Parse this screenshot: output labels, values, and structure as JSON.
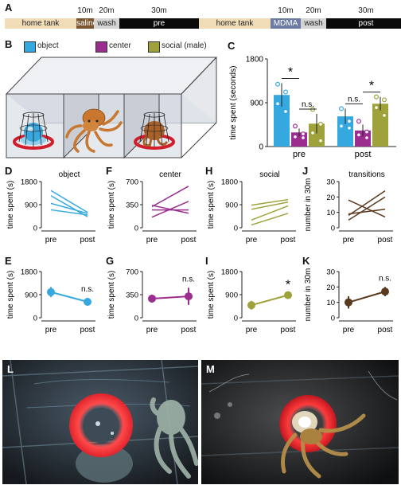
{
  "panels": {
    "A": "A",
    "B": "B",
    "C": "C",
    "D": "D",
    "E": "E",
    "F": "F",
    "G": "G",
    "H": "H",
    "I": "I",
    "J": "J",
    "K": "K",
    "L": "L",
    "M": "M"
  },
  "timeline": {
    "blocks": [
      {
        "label": "home tank",
        "color": "#f0dcb6",
        "text_color": "#222"
      },
      {
        "label": "saline",
        "color": "#7a5530",
        "text_color": "#ffffff"
      },
      {
        "label": "wash",
        "color": "#d4d4d4",
        "text_color": "#222"
      },
      {
        "label": "pre",
        "color": "#0a0a0a",
        "text_color": "#ffffff"
      },
      {
        "label": "home tank",
        "color": "#f0dcb6",
        "text_color": "#222"
      },
      {
        "label": "MDMA",
        "color": "#6c7ba4",
        "text_color": "#ffffff"
      },
      {
        "label": "wash",
        "color": "#d4d4d4",
        "text_color": "#222"
      },
      {
        "label": "post",
        "color": "#0a0a0a",
        "text_color": "#ffffff"
      }
    ],
    "durations": [
      "10m",
      "20m",
      "30m",
      "10m",
      "20m",
      "30m"
    ]
  },
  "legend": [
    {
      "label": "object",
      "color": "#35a9df"
    },
    {
      "label": "center",
      "color": "#9b2d8f"
    },
    {
      "label": "social (male)",
      "color": "#9fa23a"
    }
  ],
  "chart_data": [
    {
      "id": "C",
      "type": "bar",
      "categories": [
        "pre",
        "post"
      ],
      "series": [
        {
          "name": "object",
          "color": "#35a9df",
          "values": [
            1060,
            620
          ],
          "err": [
            240,
            160
          ],
          "points": [
            [
              1280,
              1120,
              880,
              720
            ],
            [
              780,
              520,
              420,
              380
            ]
          ]
        },
        {
          "name": "center",
          "color": "#9b2d8f",
          "values": [
            290,
            330
          ],
          "err": [
            80,
            120
          ],
          "points": [
            [
              420,
              260,
              200,
              180
            ],
            [
              520,
              300,
              240,
              180
            ]
          ]
        },
        {
          "name": "social (male)",
          "color": "#9fa23a",
          "values": [
            470,
            880
          ],
          "err": [
            200,
            140
          ],
          "points": [
            [
              760,
              460,
              280,
              120
            ],
            [
              1020,
              960,
              800,
              640
            ]
          ]
        }
      ],
      "ylabel": "time spent (seconds)",
      "ylim": [
        0,
        1800
      ],
      "yticks": [
        "0",
        "900",
        "1800"
      ],
      "annotations": [
        {
          "label": "*",
          "group": 0,
          "from": 0,
          "to": 1
        },
        {
          "label": "n.s.",
          "group": 0,
          "from": 1,
          "to": 2
        },
        {
          "label": "n.s.",
          "group": 1,
          "from": 0,
          "to": 1
        },
        {
          "label": "*",
          "group": 1,
          "from": 1,
          "to": 2
        }
      ]
    },
    {
      "id": "D",
      "type": "line",
      "title": "object",
      "color": "#35a9df",
      "ylim": [
        0,
        1800
      ],
      "yticks": [
        "0",
        "900",
        "1800"
      ],
      "ylabel": "time spent (s)",
      "x": [
        "pre",
        "post"
      ],
      "lines": [
        [
          1450,
          600
        ],
        [
          1250,
          430
        ],
        [
          950,
          560
        ],
        [
          700,
          500
        ]
      ]
    },
    {
      "id": "F",
      "type": "line",
      "title": "center",
      "color": "#9b2d8f",
      "ylim": [
        0,
        700
      ],
      "yticks": [
        "0",
        "350",
        "700"
      ],
      "ylabel": "time spent (s)",
      "x": [
        "pre",
        "post"
      ],
      "lines": [
        [
          320,
          630
        ],
        [
          340,
          220
        ],
        [
          270,
          270
        ],
        [
          160,
          400
        ]
      ]
    },
    {
      "id": "H",
      "type": "line",
      "title": "social",
      "color": "#9fa23a",
      "ylim": [
        0,
        1800
      ],
      "yticks": [
        "0",
        "900",
        "1800"
      ],
      "ylabel": "time spent (s)",
      "x": [
        "pre",
        "post"
      ],
      "lines": [
        [
          880,
          1100
        ],
        [
          720,
          1000
        ],
        [
          300,
          850
        ],
        [
          110,
          560
        ]
      ]
    },
    {
      "id": "J",
      "type": "line",
      "title": "transitions",
      "color": "#5a3a1e",
      "ylim": [
        0,
        30
      ],
      "yticks": [
        "0",
        "10",
        "20",
        "30"
      ],
      "ylabel": "number in 30m",
      "x": [
        "pre",
        "post"
      ],
      "lines": [
        [
          18,
          7
        ],
        [
          8,
          24
        ],
        [
          5,
          20
        ],
        [
          9,
          12
        ]
      ]
    },
    {
      "id": "E",
      "type": "mean",
      "color": "#35a9df",
      "ylim": [
        0,
        1800
      ],
      "yticks": [
        "0",
        "900",
        "1800"
      ],
      "ylabel": "time spent (s)",
      "x": [
        "pre",
        "post"
      ],
      "values": [
        1000,
        620
      ],
      "err": [
        200,
        150
      ],
      "sig": "n.s."
    },
    {
      "id": "G",
      "type": "mean",
      "color": "#9b2d8f",
      "ylim": [
        0,
        700
      ],
      "yticks": [
        "0",
        "350",
        "700"
      ],
      "ylabel": "time spent (s)",
      "x": [
        "pre",
        "post"
      ],
      "values": [
        290,
        325
      ],
      "err": [
        60,
        130
      ],
      "sig": "n.s."
    },
    {
      "id": "I",
      "type": "mean",
      "color": "#9fa23a",
      "ylim": [
        0,
        1800
      ],
      "yticks": [
        "0",
        "900",
        "1800"
      ],
      "ylabel": "time spent (s)",
      "x": [
        "pre",
        "post"
      ],
      "values": [
        490,
        880
      ],
      "err": [
        170,
        70
      ],
      "sig": "*"
    },
    {
      "id": "K",
      "type": "mean",
      "color": "#5a3a1e",
      "ylim": [
        0,
        30
      ],
      "yticks": [
        "0",
        "10",
        "20",
        "30"
      ],
      "ylabel": "number in 30m",
      "x": [
        "pre",
        "post"
      ],
      "values": [
        10,
        17
      ],
      "err": [
        4,
        3
      ],
      "sig": "n.s."
    }
  ]
}
